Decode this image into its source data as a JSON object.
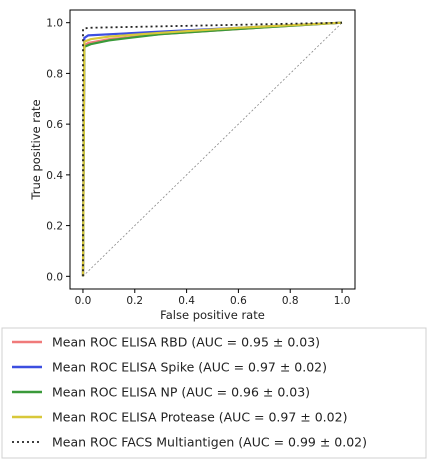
{
  "chart_data": {
    "type": "line",
    "xlabel": "False positive rate",
    "ylabel": "True positive rate",
    "xlim": [
      -0.05,
      1.05
    ],
    "ylim": [
      -0.05,
      1.05
    ],
    "xticks": [
      "0.0",
      "0.2",
      "0.4",
      "0.6",
      "0.8",
      "1.0"
    ],
    "yticks": [
      "0.0",
      "0.2",
      "0.4",
      "0.6",
      "0.8",
      "1.0"
    ],
    "xtick_values": [
      0,
      0.2,
      0.4,
      0.6,
      0.8,
      1.0
    ],
    "ytick_values": [
      0,
      0.2,
      0.4,
      0.6,
      0.8,
      1.0
    ],
    "legend_position": "below",
    "grid": false,
    "chance_line": {
      "x": [
        0,
        1
      ],
      "y": [
        0,
        1
      ],
      "color": "#888888",
      "style": "dashed"
    },
    "series": [
      {
        "name": "Mean ROC ELISA RBD (AUC = 0.95 ± 0.03)",
        "color": "#f07a7a",
        "style": "solid",
        "x": [
          0,
          0.005,
          0.02,
          0.1,
          0.3,
          0.6,
          1.0
        ],
        "y": [
          0,
          0.91,
          0.92,
          0.935,
          0.955,
          0.975,
          1.0
        ]
      },
      {
        "name": "Mean ROC ELISA Spike (AUC = 0.97 ± 0.02)",
        "color": "#3c4ee0",
        "style": "solid",
        "x": [
          0,
          0.005,
          0.02,
          0.3,
          0.7,
          1.0
        ],
        "y": [
          0,
          0.94,
          0.95,
          0.965,
          0.985,
          1.0
        ]
      },
      {
        "name": "Mean ROC ELISA NP (AUC = 0.96 ± 0.03)",
        "color": "#3a9a3a",
        "style": "solid",
        "x": [
          0,
          0.005,
          0.03,
          0.1,
          0.3,
          0.6,
          1.0
        ],
        "y": [
          0,
          0.905,
          0.915,
          0.93,
          0.955,
          0.975,
          1.0
        ]
      },
      {
        "name": "Mean ROC ELISA Protease (AUC = 0.97 ± 0.02)",
        "color": "#d8c83a",
        "style": "solid",
        "x": [
          0,
          0.005,
          0.03,
          0.1,
          0.3,
          0.6,
          1.0
        ],
        "y": [
          0,
          0.925,
          0.935,
          0.945,
          0.96,
          0.98,
          1.0
        ]
      },
      {
        "name": "Mean ROC FACS Multiantigen (AUC = 0.99 ± 0.02)",
        "color": "#222222",
        "style": "dotted",
        "x": [
          0,
          0.0,
          0.02,
          1.0
        ],
        "y": [
          0,
          0.975,
          0.98,
          1.0
        ]
      }
    ]
  }
}
